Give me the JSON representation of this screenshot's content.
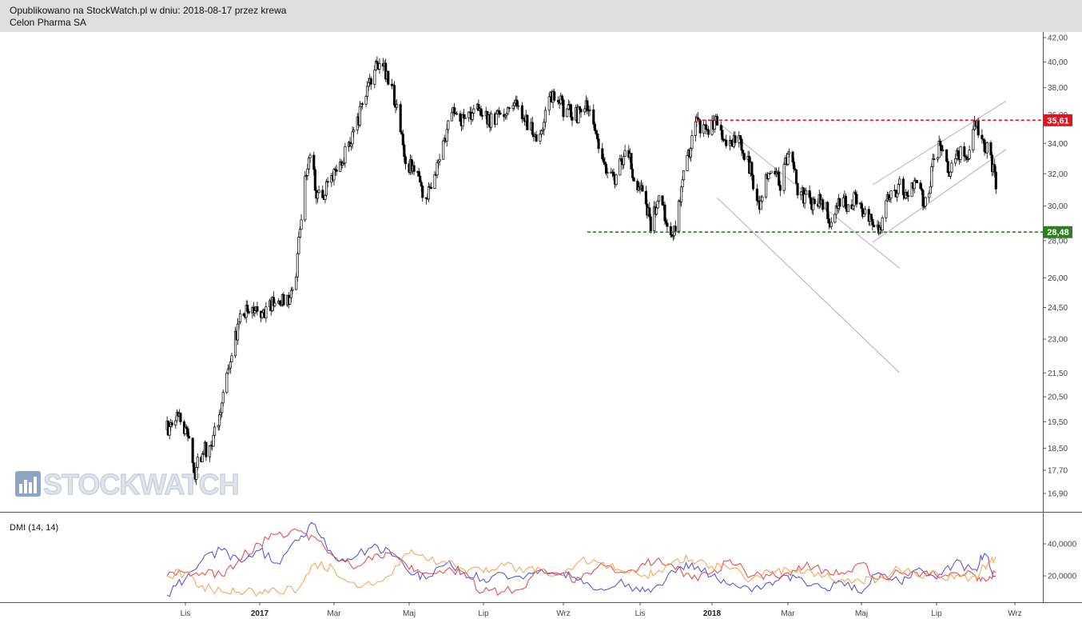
{
  "header": {
    "line1": "Opublikowano na StockWatch.pl w dniu: 2018-08-17 przez krewa",
    "line2": "Celon Pharma SA"
  },
  "watermark": {
    "text": "STOCKWATCH"
  },
  "colors": {
    "header_bg": "#dedede",
    "candle": "#000000",
    "resistance": "#e0141c",
    "support": "#2e7d1e",
    "dmi_plus": "#4a4ad8",
    "dmi_minus": "#e84040",
    "adx": "#f5a04a",
    "channel": "#b0b0b0"
  },
  "chart_data": [
    {
      "type": "candlestick",
      "title": "Celon Pharma SA",
      "y_scale": "log",
      "ylim": [
        16.5,
        42.5
      ],
      "y_ticks": [
        "42,00",
        "40,00",
        "38,00",
        "36,00",
        "34,00",
        "32,00",
        "30,00",
        "28,00",
        "26,00",
        "24,50",
        "23,00",
        "21,50",
        "20,50",
        "19,50",
        "18,50",
        "17,70",
        "16,90"
      ],
      "x_ticks": [
        {
          "label": "Lis",
          "date": "2016-11-01",
          "bold": false
        },
        {
          "label": "2017",
          "date": "2017-01-01",
          "bold": true
        },
        {
          "label": "Mar",
          "date": "2017-03-01",
          "bold": false
        },
        {
          "label": "Maj",
          "date": "2017-05-01",
          "bold": false
        },
        {
          "label": "Lip",
          "date": "2017-07-01",
          "bold": false
        },
        {
          "label": "Wrz",
          "date": "2017-09-01",
          "bold": false
        },
        {
          "label": "Lis",
          "date": "2017-11-01",
          "bold": false
        },
        {
          "label": "2018",
          "date": "2018-01-01",
          "bold": true
        },
        {
          "label": "Mar",
          "date": "2018-03-01",
          "bold": false
        },
        {
          "label": "Maj",
          "date": "2018-05-01",
          "bold": false
        },
        {
          "label": "Lip",
          "date": "2018-07-01",
          "bold": false
        },
        {
          "label": "Wrz",
          "date": "2018-09-01",
          "bold": false
        }
      ],
      "price_path": [
        [
          "2016-10-17",
          19.2
        ],
        [
          "2016-10-28",
          19.7
        ],
        [
          "2016-11-04",
          18.9
        ],
        [
          "2016-11-08",
          17.5
        ],
        [
          "2016-11-15",
          18.4
        ],
        [
          "2016-11-22",
          18.5
        ],
        [
          "2016-11-29",
          19.9
        ],
        [
          "2016-12-05",
          21.5
        ],
        [
          "2016-12-12",
          23.2
        ],
        [
          "2016-12-19",
          24.3
        ],
        [
          "2016-12-28",
          24.2
        ],
        [
          "2017-01-09",
          24.5
        ],
        [
          "2017-01-18",
          25.0
        ],
        [
          "2017-01-23",
          24.8
        ],
        [
          "2017-01-30",
          26.5
        ],
        [
          "2017-02-06",
          31.5
        ],
        [
          "2017-02-10",
          33.2
        ],
        [
          "2017-02-16",
          30.5
        ],
        [
          "2017-02-22",
          31.0
        ],
        [
          "2017-03-06",
          32.5
        ],
        [
          "2017-03-13",
          34.0
        ],
        [
          "2017-03-24",
          36.5
        ],
        [
          "2017-04-04",
          39.5
        ],
        [
          "2017-04-12",
          39.3
        ],
        [
          "2017-04-20",
          37.0
        ],
        [
          "2017-04-27",
          33.0
        ],
        [
          "2017-05-05",
          32.3
        ],
        [
          "2017-05-10",
          31.2
        ],
        [
          "2017-05-16",
          30.5
        ],
        [
          "2017-05-22",
          32.0
        ],
        [
          "2017-05-29",
          34.0
        ],
        [
          "2017-06-07",
          36.5
        ],
        [
          "2017-06-15",
          35.3
        ],
        [
          "2017-06-26",
          37.0
        ],
        [
          "2017-07-07",
          35.5
        ],
        [
          "2017-07-17",
          36.3
        ],
        [
          "2017-07-26",
          37.4
        ],
        [
          "2017-08-04",
          35.2
        ],
        [
          "2017-08-14",
          34.4
        ],
        [
          "2017-08-24",
          37.7
        ],
        [
          "2017-09-01",
          36.5
        ],
        [
          "2017-09-13",
          36.0
        ],
        [
          "2017-09-22",
          36.8
        ],
        [
          "2017-09-29",
          34.0
        ],
        [
          "2017-10-06",
          32.0
        ],
        [
          "2017-10-13",
          31.5
        ],
        [
          "2017-10-20",
          33.8
        ],
        [
          "2017-10-27",
          32.0
        ],
        [
          "2017-11-06",
          30.0
        ],
        [
          "2017-11-10",
          28.9
        ],
        [
          "2017-11-17",
          30.5
        ],
        [
          "2017-11-24",
          29.0
        ],
        [
          "2017-11-30",
          28.5
        ],
        [
          "2017-12-07",
          31.5
        ],
        [
          "2017-12-13",
          33.5
        ],
        [
          "2017-12-20",
          35.5
        ],
        [
          "2017-12-28",
          34.5
        ],
        [
          "2018-01-05",
          35.5
        ],
        [
          "2018-01-12",
          34.0
        ],
        [
          "2018-01-19",
          34.5
        ],
        [
          "2018-01-30",
          32.5
        ],
        [
          "2018-02-07",
          30.0
        ],
        [
          "2018-02-14",
          32.0
        ],
        [
          "2018-02-23",
          31.5
        ],
        [
          "2018-03-02",
          33.5
        ],
        [
          "2018-03-09",
          31.0
        ],
        [
          "2018-03-16",
          30.5
        ],
        [
          "2018-03-23",
          30.0
        ],
        [
          "2018-03-30",
          30.3
        ],
        [
          "2018-04-06",
          29.0
        ],
        [
          "2018-04-13",
          30.5
        ],
        [
          "2018-04-20",
          29.8
        ],
        [
          "2018-04-27",
          30.5
        ],
        [
          "2018-05-04",
          29.5
        ],
        [
          "2018-05-10",
          28.8
        ],
        [
          "2018-05-16",
          28.3
        ],
        [
          "2018-05-23",
          30.5
        ],
        [
          "2018-06-01",
          31.3
        ],
        [
          "2018-06-08",
          30.5
        ],
        [
          "2018-06-15",
          31.5
        ],
        [
          "2018-06-22",
          30.0
        ],
        [
          "2018-06-29",
          33.0
        ],
        [
          "2018-07-04",
          33.8
        ],
        [
          "2018-07-11",
          31.7
        ],
        [
          "2018-07-18",
          33.5
        ],
        [
          "2018-07-25",
          32.8
        ],
        [
          "2018-08-01",
          35.3
        ],
        [
          "2018-08-08",
          34.0
        ],
        [
          "2018-08-13",
          33.0
        ],
        [
          "2018-08-17",
          31.3
        ]
      ],
      "overlays": {
        "resistance": {
          "label": "35,61",
          "value": 35.61,
          "from": "2017-12-19",
          "to": "2018-09-22",
          "style": "dashed"
        },
        "support": {
          "label": "28,48",
          "value": 28.48,
          "from": "2017-09-20",
          "to": "2018-09-22",
          "style": "dashed"
        },
        "channel_down": {
          "start": [
            "2018-01-05",
            35.5
          ],
          "end": [
            "2018-06-01",
            26.5
          ],
          "offset": -5.0
        },
        "channel_up": {
          "start": [
            "2018-05-10",
            27.9
          ],
          "end": [
            "2018-08-25",
            33.6
          ],
          "offset": 3.4
        }
      }
    },
    {
      "type": "line",
      "title": "DMI (14, 14)",
      "ylim": [
        5,
        56
      ],
      "y_ticks": [
        {
          "label": "40,0000",
          "value": 40
        },
        {
          "label": "20,0000",
          "value": 20
        }
      ],
      "series": [
        {
          "key": "plus",
          "color": "#4a4ad8",
          "points": [
            [
              "2016-10-17",
              8
            ],
            [
              "2016-11-01",
              18
            ],
            [
              "2016-11-15",
              30
            ],
            [
              "2016-12-01",
              36
            ],
            [
              "2016-12-15",
              30
            ],
            [
              "2017-01-01",
              36
            ],
            [
              "2017-01-15",
              28
            ],
            [
              "2017-02-01",
              42
            ],
            [
              "2017-02-14",
              52
            ],
            [
              "2017-03-01",
              32
            ],
            [
              "2017-03-15",
              30
            ],
            [
              "2017-04-01",
              38
            ],
            [
              "2017-04-15",
              36
            ],
            [
              "2017-05-01",
              22
            ],
            [
              "2017-05-15",
              18
            ],
            [
              "2017-06-01",
              28
            ],
            [
              "2017-06-15",
              22
            ],
            [
              "2017-07-01",
              18
            ],
            [
              "2017-07-15",
              22
            ],
            [
              "2017-08-01",
              18
            ],
            [
              "2017-08-15",
              24
            ],
            [
              "2017-09-01",
              22
            ],
            [
              "2017-09-15",
              18
            ],
            [
              "2017-10-01",
              12
            ],
            [
              "2017-10-15",
              16
            ],
            [
              "2017-11-01",
              10
            ],
            [
              "2017-11-15",
              14
            ],
            [
              "2017-12-01",
              22
            ],
            [
              "2017-12-15",
              28
            ],
            [
              "2018-01-01",
              20
            ],
            [
              "2018-01-15",
              14
            ],
            [
              "2018-02-01",
              10
            ],
            [
              "2018-02-15",
              16
            ],
            [
              "2018-03-01",
              20
            ],
            [
              "2018-03-15",
              16
            ],
            [
              "2018-04-01",
              12
            ],
            [
              "2018-04-15",
              16
            ],
            [
              "2018-05-01",
              9
            ],
            [
              "2018-05-15",
              22
            ],
            [
              "2018-06-01",
              16
            ],
            [
              "2018-06-15",
              24
            ],
            [
              "2018-07-01",
              18
            ],
            [
              "2018-07-15",
              28
            ],
            [
              "2018-08-01",
              24
            ],
            [
              "2018-08-08",
              34
            ],
            [
              "2018-08-17",
              20
            ]
          ]
        },
        {
          "key": "minus",
          "color": "#e84040",
          "points": [
            [
              "2016-10-17",
              20
            ],
            [
              "2016-11-01",
              22
            ],
            [
              "2016-11-15",
              22
            ],
            [
              "2016-12-01",
              20
            ],
            [
              "2016-12-15",
              30
            ],
            [
              "2017-01-01",
              40
            ],
            [
              "2017-01-15",
              46
            ],
            [
              "2017-02-01",
              48
            ],
            [
              "2017-02-14",
              44
            ],
            [
              "2017-03-01",
              32
            ],
            [
              "2017-03-15",
              26
            ],
            [
              "2017-04-01",
              30
            ],
            [
              "2017-04-15",
              34
            ],
            [
              "2017-05-01",
              24
            ],
            [
              "2017-05-15",
              22
            ],
            [
              "2017-06-01",
              24
            ],
            [
              "2017-06-15",
              22
            ],
            [
              "2017-07-01",
              10
            ],
            [
              "2017-07-15",
              10
            ],
            [
              "2017-08-01",
              12
            ],
            [
              "2017-08-15",
              24
            ],
            [
              "2017-09-01",
              20
            ],
            [
              "2017-09-15",
              18
            ],
            [
              "2017-10-01",
              28
            ],
            [
              "2017-10-15",
              22
            ],
            [
              "2017-11-01",
              26
            ],
            [
              "2017-11-15",
              30
            ],
            [
              "2017-12-01",
              24
            ],
            [
              "2017-12-15",
              18
            ],
            [
              "2018-01-01",
              22
            ],
            [
              "2018-01-15",
              30
            ],
            [
              "2018-02-01",
              20
            ],
            [
              "2018-02-15",
              20
            ],
            [
              "2018-03-01",
              22
            ],
            [
              "2018-03-15",
              26
            ],
            [
              "2018-04-01",
              24
            ],
            [
              "2018-04-15",
              22
            ],
            [
              "2018-05-01",
              28
            ],
            [
              "2018-05-15",
              18
            ],
            [
              "2018-06-01",
              22
            ],
            [
              "2018-06-15",
              22
            ],
            [
              "2018-07-01",
              20
            ],
            [
              "2018-07-15",
              22
            ],
            [
              "2018-08-01",
              20
            ],
            [
              "2018-08-08",
              18
            ],
            [
              "2018-08-17",
              22
            ]
          ]
        },
        {
          "key": "adx",
          "color": "#f5a04a",
          "points": [
            [
              "2016-10-17",
              20
            ],
            [
              "2016-11-01",
              22
            ],
            [
              "2016-11-15",
              14
            ],
            [
              "2016-12-01",
              10
            ],
            [
              "2016-12-15",
              10
            ],
            [
              "2017-01-01",
              10
            ],
            [
              "2017-01-15",
              10
            ],
            [
              "2017-02-01",
              12
            ],
            [
              "2017-02-14",
              28
            ],
            [
              "2017-03-01",
              24
            ],
            [
              "2017-03-15",
              16
            ],
            [
              "2017-04-01",
              14
            ],
            [
              "2017-04-15",
              20
            ],
            [
              "2017-05-01",
              34
            ],
            [
              "2017-05-15",
              30
            ],
            [
              "2017-06-01",
              28
            ],
            [
              "2017-06-15",
              24
            ],
            [
              "2017-07-01",
              22
            ],
            [
              "2017-07-15",
              28
            ],
            [
              "2017-08-01",
              22
            ],
            [
              "2017-08-15",
              24
            ],
            [
              "2017-09-01",
              20
            ],
            [
              "2017-09-15",
              30
            ],
            [
              "2017-10-01",
              28
            ],
            [
              "2017-10-15",
              24
            ],
            [
              "2017-11-01",
              20
            ],
            [
              "2017-11-15",
              22
            ],
            [
              "2017-12-01",
              30
            ],
            [
              "2017-12-15",
              30
            ],
            [
              "2018-01-01",
              26
            ],
            [
              "2018-01-15",
              24
            ],
            [
              "2018-02-01",
              18
            ],
            [
              "2018-02-15",
              22
            ],
            [
              "2018-03-01",
              24
            ],
            [
              "2018-03-15",
              22
            ],
            [
              "2018-04-01",
              20
            ],
            [
              "2018-04-15",
              18
            ],
            [
              "2018-05-01",
              16
            ],
            [
              "2018-05-15",
              18
            ],
            [
              "2018-06-01",
              24
            ],
            [
              "2018-06-15",
              20
            ],
            [
              "2018-07-01",
              22
            ],
            [
              "2018-07-15",
              18
            ],
            [
              "2018-08-01",
              20
            ],
            [
              "2018-08-08",
              26
            ],
            [
              "2018-08-17",
              32
            ]
          ]
        }
      ]
    }
  ],
  "indicator_label": "DMI (14, 14)"
}
